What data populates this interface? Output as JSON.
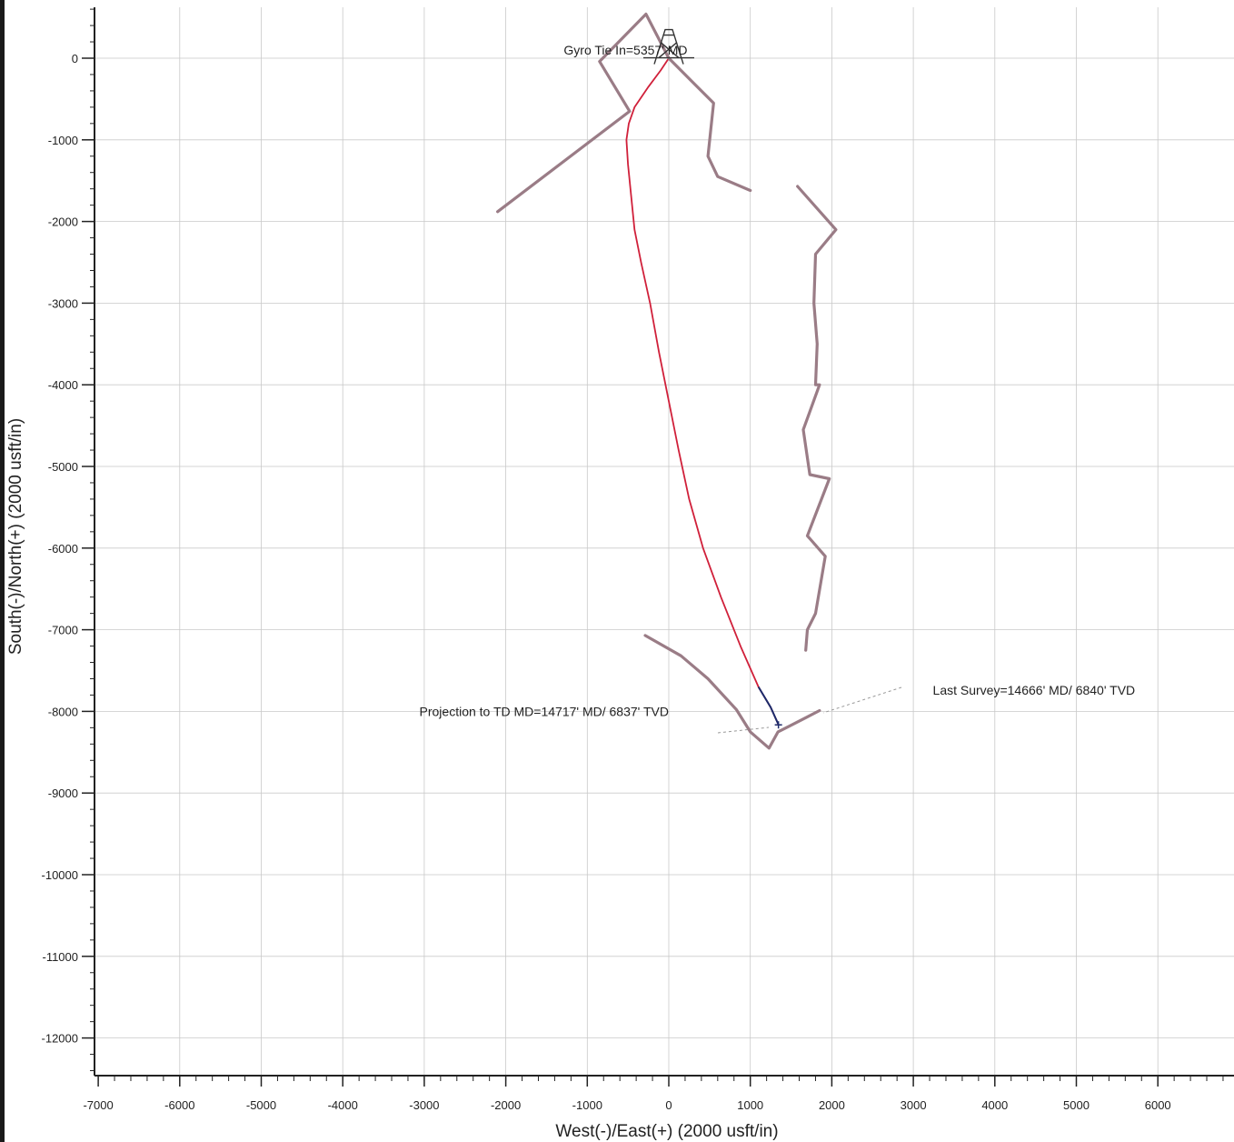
{
  "chart_data": {
    "type": "line",
    "xlabel": "West(-)/East(+) (2000 usft/in)",
    "ylabel": "South(-)/North(+) (2000 usft/in)",
    "xlim": [
      -7000,
      7000
    ],
    "ylim": [
      -12500,
      600
    ],
    "x_ticks": [
      -7000,
      -6000,
      -5000,
      -4000,
      -3000,
      -2000,
      -1000,
      0,
      1000,
      2000,
      3000,
      4000,
      5000,
      6000
    ],
    "y_ticks": [
      0,
      -1000,
      -2000,
      -3000,
      -4000,
      -5000,
      -6000,
      -7000,
      -8000,
      -9000,
      -10000,
      -11000,
      -12000
    ],
    "grid": true,
    "colors": {
      "planned": "#d0203a",
      "offset": "#9a7c86",
      "survey_end": "#1c2a6a",
      "axis": "#222222"
    },
    "series": [
      {
        "x": [
          0,
          -100,
          -250,
          -420,
          -490,
          -520,
          -500,
          -460,
          -420,
          -340,
          -230,
          -120,
          0,
          120,
          250,
          420,
          640,
          880,
          1100,
          1250,
          1340
        ],
        "y": [
          0,
          -150,
          -350,
          -600,
          -800,
          -1000,
          -1300,
          -1700,
          -2100,
          -2500,
          -3000,
          -3600,
          -4200,
          -4800,
          -5400,
          -6000,
          -6600,
          -7200,
          -7700,
          -7950,
          -8150
        ]
      },
      {
        "x": [
          -2100,
          -480,
          -850,
          -280,
          0,
          250,
          550,
          480,
          600,
          1000
        ],
        "y": [
          -1880,
          -650,
          -40,
          540,
          0,
          -250,
          -550,
          -1200,
          -1450,
          -1620
        ]
      },
      {
        "x": [
          1580,
          2050,
          1800,
          1780,
          1820,
          1800,
          1850,
          1650,
          1730,
          1970,
          1700,
          1920,
          1800,
          1700,
          1680
        ],
        "y": [
          -1570,
          -2100,
          -2400,
          -3000,
          -3500,
          -4000,
          -4000,
          -4550,
          -5100,
          -5150,
          -5850,
          -6100,
          -6800,
          -7000,
          -7250
        ]
      },
      {
        "x": [
          -290,
          150,
          480,
          830,
          1000,
          1230,
          1340,
          1480,
          1850
        ],
        "y": [
          -7070,
          -7320,
          -7600,
          -7980,
          -8250,
          -8450,
          -8250,
          -8180,
          -7990
        ]
      }
    ],
    "markers": [
      {
        "name": "rig-symbol",
        "x": 0,
        "y": 350
      },
      {
        "name": "projection-to-td",
        "x": 1345,
        "y": -8165
      }
    ],
    "annotations": [
      {
        "text": "Gyro Tie In=5357' MD",
        "x": -530,
        "y": 100
      },
      {
        "text": "Last Survey=14666' MD/ 6840' TVD",
        "x": 4480,
        "y": -7740
      },
      {
        "text": "Projection to TD MD=14717' MD/  6837' TVD",
        "x": -1530,
        "y": -8000
      }
    ]
  }
}
